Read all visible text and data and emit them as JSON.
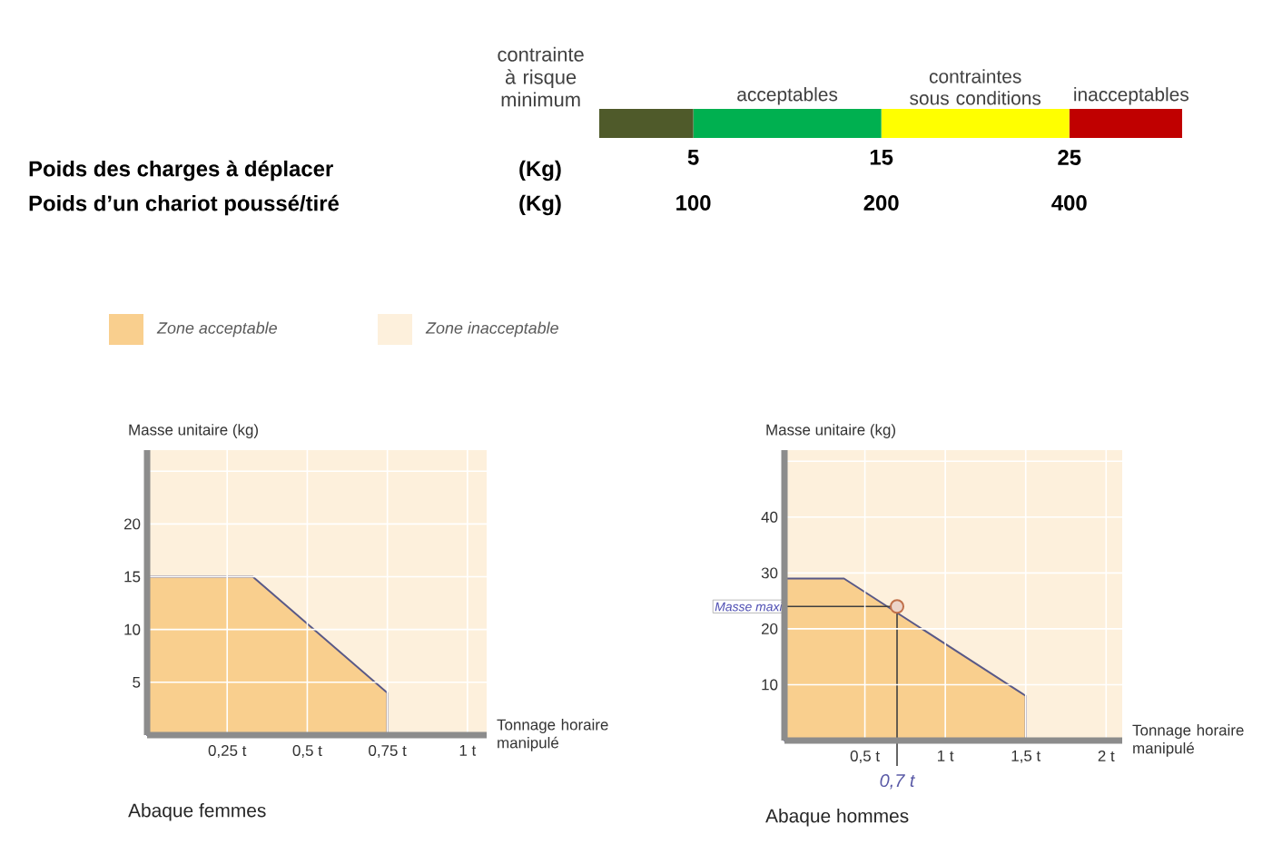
{
  "chart_data": [
    {
      "type": "bar",
      "orientation": "horizontal",
      "stacked": true,
      "categories": [
        null
      ],
      "series": [
        {
          "name": "contrainte à risque minimum",
          "color": "#4f5a2a",
          "values": [
            5
          ]
        },
        {
          "name": "acceptables",
          "color": "#00b050",
          "values": [
            10
          ]
        },
        {
          "name": "contraintes sous conditions",
          "color": "#ffff00",
          "values": [
            10
          ]
        },
        {
          "name": "inacceptables",
          "color": "#c00000",
          "values": [
            6
          ]
        }
      ],
      "xlim": [
        0,
        31
      ],
      "xticks": [
        5,
        15,
        25
      ],
      "annotations": [
        "Poids des charges à déplacer",
        "(Kg)",
        "Poids d’un chariot poussé/tiré",
        "(Kg)",
        "100",
        "200",
        "400"
      ]
    },
    {
      "type": "area",
      "title": "Abaque femmes",
      "xlabel": "Tonnage horaire manipulé",
      "ylabel": "Masse unitaire (kg)",
      "series": [
        {
          "name": "Zone acceptable",
          "color": "#f9cf8e",
          "x": [
            0,
            0.33,
            0.75,
            0.75
          ],
          "values": [
            15,
            15,
            4,
            0
          ]
        }
      ],
      "bands": [
        {
          "axis": "y",
          "from": 0,
          "to": 27,
          "label": "Zone inacceptable",
          "color": "#fdf0dc"
        }
      ],
      "xlim": [
        0,
        1.06
      ],
      "ylim": [
        0,
        27
      ],
      "xticks": [
        {
          "value": 0.25,
          "label": "0,25 t"
        },
        {
          "value": 0.5,
          "label": "0,5 t"
        },
        {
          "value": 0.75,
          "label": "0,75 t"
        },
        {
          "value": 1,
          "label": "1 t"
        }
      ],
      "yticks": [
        5,
        10,
        15,
        20,
        {
          "value": 25,
          "label": null
        }
      ],
      "grid": true,
      "legend": "top left"
    },
    {
      "type": "area",
      "title": "Abaque hommes",
      "xlabel": "Tonnage horaire manipulé",
      "ylabel": "Masse unitaire (kg)",
      "series": [
        {
          "color": "#f9cf8e",
          "x": [
            0,
            0.37,
            1.5,
            1.5
          ],
          "values": [
            29,
            29,
            8,
            0
          ]
        },
        {
          "type": "scatter",
          "marker": "circle",
          "color": "#c0704a",
          "x": [
            0.7
          ],
          "values": [
            24
          ]
        }
      ],
      "bands": [
        {
          "axis": "y",
          "from": 0,
          "to": 52,
          "color": "#fdf0dc"
        }
      ],
      "xlim": [
        0,
        2.1
      ],
      "ylim": [
        0,
        52
      ],
      "xticks": [
        {
          "value": 0.5,
          "label": "0,5 t"
        },
        {
          "value": 1,
          "label": "1 t"
        },
        {
          "value": 1.5,
          "label": "1,5 t"
        },
        {
          "value": 2,
          "label": "2 t"
        }
      ],
      "yticks": [
        10,
        20,
        30,
        40,
        {
          "value": 50,
          "label": null
        }
      ],
      "annotations": [
        {
          "text": "Masse maxi",
          "x": 0,
          "y": 24
        },
        {
          "text": "0,7 t",
          "x": 0.7,
          "y": 0
        }
      ],
      "grid": true
    }
  ]
}
